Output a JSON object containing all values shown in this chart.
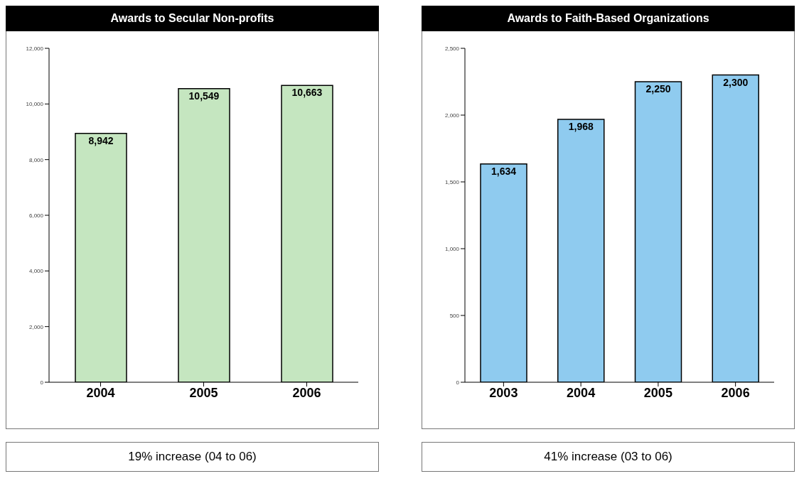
{
  "chart_data": [
    {
      "type": "bar",
      "title": "Awards to Secular Non-profits",
      "categories": [
        "2004",
        "2005",
        "2006"
      ],
      "values": [
        8942,
        10549,
        10663
      ],
      "data_labels": true,
      "value_labels": [
        "8,942",
        "10,549",
        "10,663"
      ],
      "color": "#c5e6c0",
      "ylim": [
        0,
        12000
      ],
      "yticks": [
        {
          "value": 0,
          "label": "0"
        },
        {
          "value": 2000,
          "label": "2,000"
        },
        {
          "value": 4000,
          "label": "4,000"
        },
        {
          "value": 6000,
          "label": "6,000"
        },
        {
          "value": 8000,
          "label": "8,000"
        },
        {
          "value": 10000,
          "label": "10,000"
        },
        {
          "value": 12000,
          "label": "12,000"
        }
      ],
      "annotations": [
        "19% increase (04 to 06)"
      ]
    },
    {
      "type": "bar",
      "title": "Awards to Faith-Based Organizations",
      "categories": [
        "2003",
        "2004",
        "2005",
        "2006"
      ],
      "values": [
        1634,
        1968,
        2250,
        2300
      ],
      "data_labels": true,
      "value_labels": [
        "1,634",
        "1,968",
        "2,250",
        "2,300"
      ],
      "color": "#8fcbef",
      "ylim": [
        0,
        2500
      ],
      "yticks": [
        {
          "value": 0,
          "label": "0"
        },
        {
          "value": 500,
          "label": "500"
        },
        {
          "value": 1000,
          "label": "1,000"
        },
        {
          "value": 1500,
          "label": "1,500"
        },
        {
          "value": 2000,
          "label": "2,000"
        },
        {
          "value": 2500,
          "label": "2,500"
        }
      ],
      "annotations": [
        "41% increase (03 to 06)"
      ]
    }
  ]
}
